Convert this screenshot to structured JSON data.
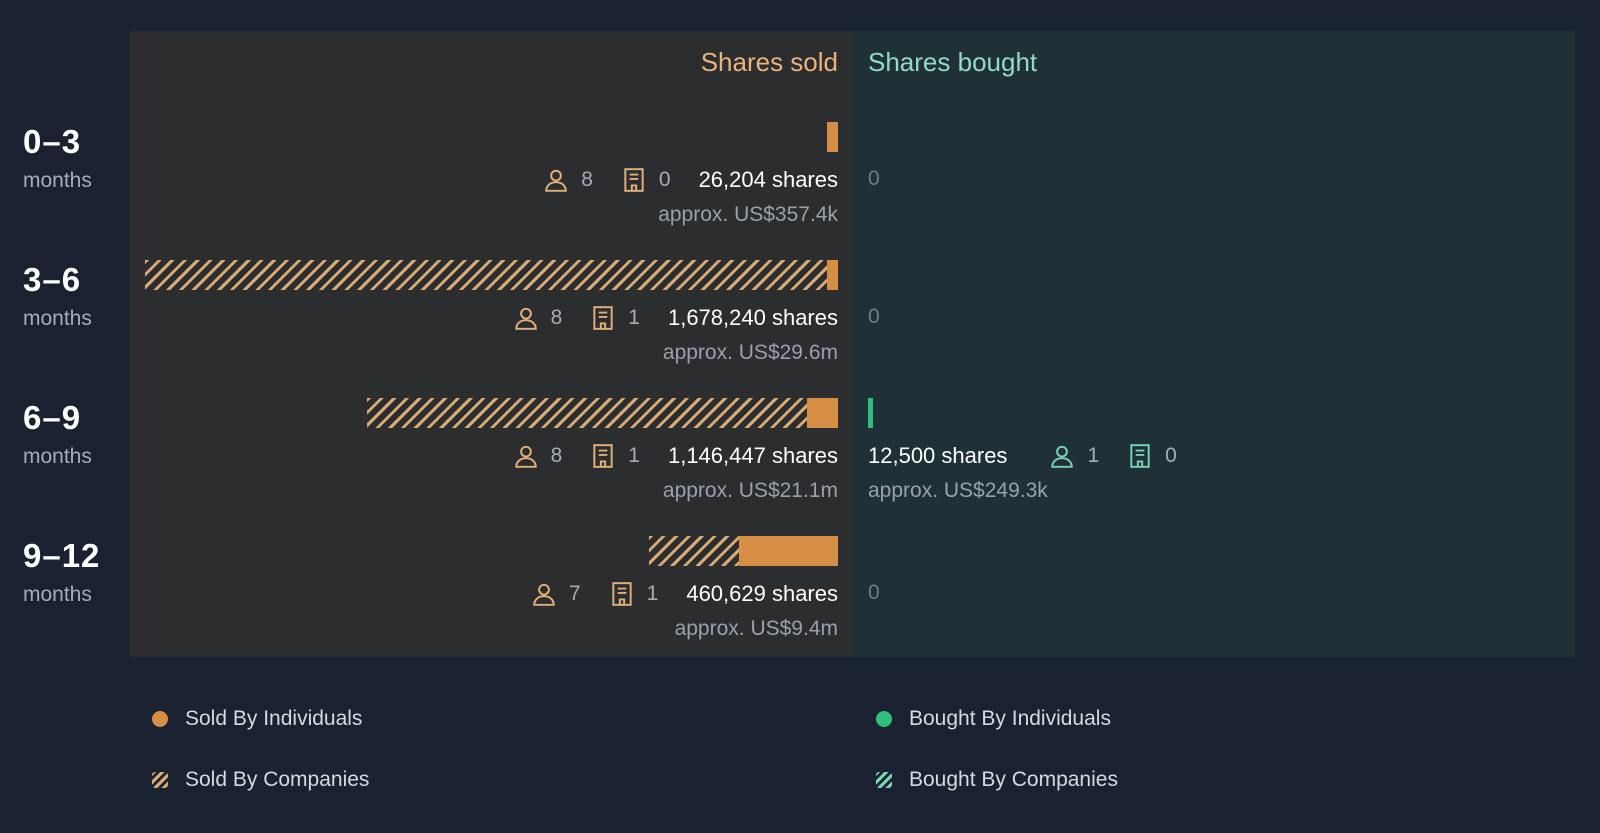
{
  "headers": {
    "sold": "Shares sold",
    "bought": "Shares bought"
  },
  "rows": [
    {
      "range": "0–3",
      "unit": "months",
      "sold": {
        "individuals": "8",
        "companies": "0",
        "shares": "26,204 shares",
        "approx": "approx. US$357.4k",
        "individual_shares": 26204,
        "company_shares": 0
      },
      "bought": {
        "zero": "0"
      }
    },
    {
      "range": "3–6",
      "unit": "months",
      "sold": {
        "individuals": "8",
        "companies": "1",
        "shares": "1,678,240 shares",
        "approx": "approx. US$29.6m",
        "individual_shares": 20000,
        "company_shares": 1658240
      },
      "bought": {
        "zero": "0"
      }
    },
    {
      "range": "6–9",
      "unit": "months",
      "sold": {
        "individuals": "8",
        "companies": "1",
        "shares": "1,146,447 shares",
        "approx": "approx. US$21.1m",
        "individual_shares": 75000,
        "company_shares": 1071447
      },
      "bought": {
        "shares": "12,500 shares",
        "individuals": "1",
        "companies": "0",
        "approx": "approx. US$249.3k",
        "individual_shares": 12500,
        "company_shares": 0
      }
    },
    {
      "range": "9–12",
      "unit": "months",
      "sold": {
        "individuals": "7",
        "companies": "1",
        "shares": "460,629 shares",
        "approx": "approx. US$9.4m",
        "individual_shares": 240000,
        "company_shares": 220629
      },
      "bought": {
        "zero": "0"
      }
    }
  ],
  "legend": {
    "sold_individuals": "Sold By Individuals",
    "sold_companies": "Sold By Companies",
    "bought_individuals": "Bought By Individuals",
    "bought_companies": "Bought By Companies"
  },
  "colors": {
    "sold": "#d58e43",
    "sold_hatch": "#d8ab74",
    "bought": "#2fbf7a",
    "background": "#1a2130"
  },
  "chart_data": {
    "type": "bar",
    "categories": [
      "0–3 months",
      "3–6 months",
      "6–9 months",
      "9–12 months"
    ],
    "series": [
      {
        "name": "Sold By Individuals",
        "values": [
          26204,
          20000,
          75000,
          240000
        ]
      },
      {
        "name": "Sold By Companies",
        "values": [
          0,
          1658240,
          1071447,
          220629
        ]
      },
      {
        "name": "Bought By Individuals",
        "values": [
          0,
          0,
          12500,
          0
        ]
      },
      {
        "name": "Bought By Companies",
        "values": [
          0,
          0,
          0,
          0
        ]
      }
    ],
    "title": "",
    "xlabel": "",
    "ylabel": "",
    "legend": "bottom"
  }
}
